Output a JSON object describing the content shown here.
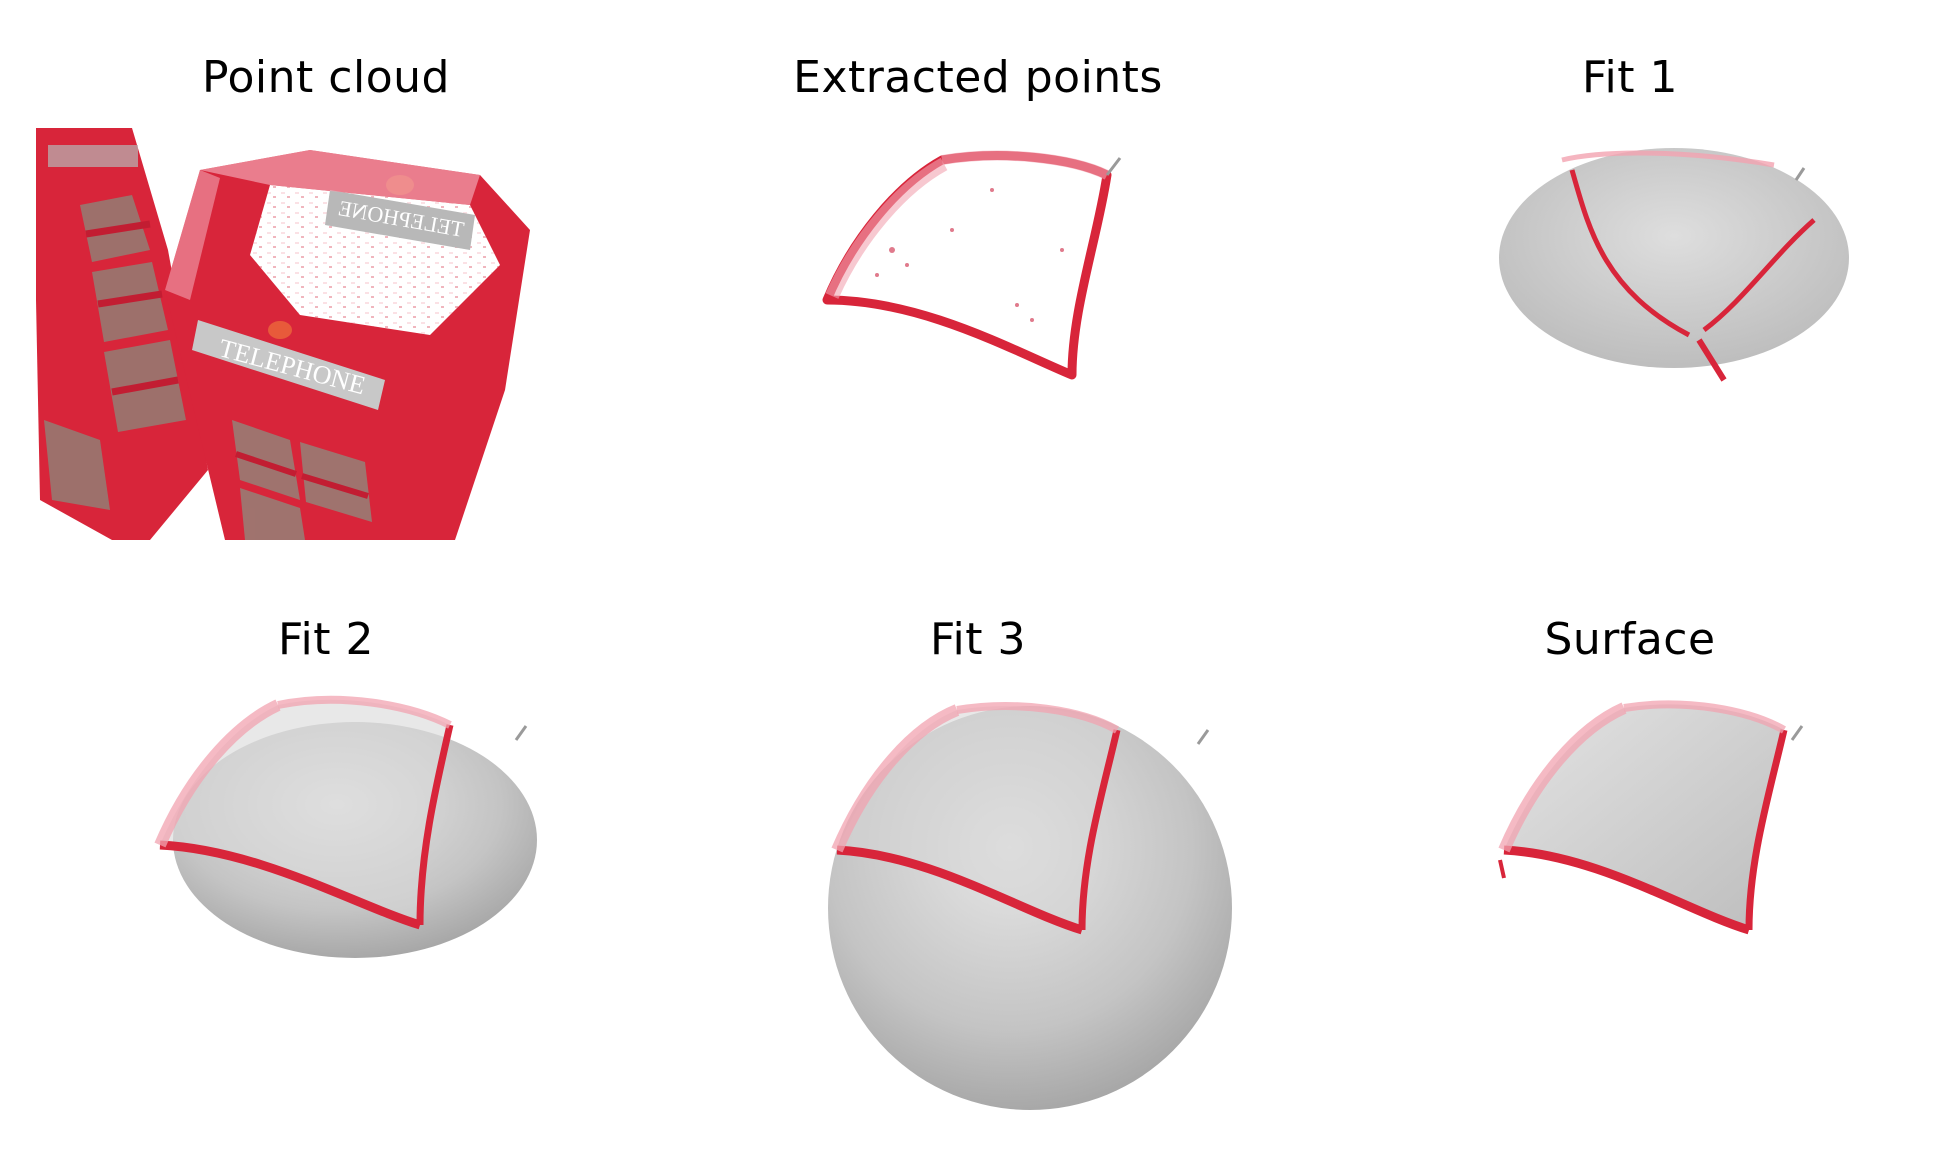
{
  "panels": [
    {
      "id": "point-cloud",
      "title": "Point cloud",
      "telephone_sign": "TELEPHONE",
      "telephone_sign_mirrored": "TELEPHONE"
    },
    {
      "id": "extracted-points",
      "title": "Extracted points"
    },
    {
      "id": "fit-1",
      "title": "Fit 1"
    },
    {
      "id": "fit-2",
      "title": "Fit 2"
    },
    {
      "id": "fit-3",
      "title": "Fit 3"
    },
    {
      "id": "surface",
      "title": "Surface"
    }
  ],
  "colors": {
    "booth_red": "#d8253a",
    "point_pink": "#f2a3b0",
    "surface_gray": "#c9c9c9",
    "background": "#ffffff"
  }
}
